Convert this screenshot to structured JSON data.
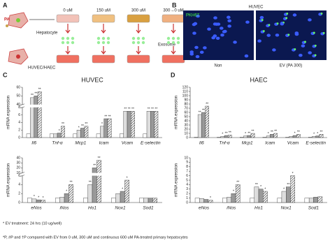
{
  "panels": {
    "a": {
      "letter": "A",
      "pa": "PA",
      "hepatocyte": "Hepatocyte",
      "exosome": "Exosome",
      "target": "HUVEC/HAEC",
      "doses": [
        "0 uM",
        "150 uM",
        "300 uM",
        "300→0 uM"
      ]
    },
    "b": {
      "letter": "B",
      "cell": "HUVEC",
      "stain": "PKH67",
      "left": "Non",
      "right": "EV (PA 300)"
    },
    "c": {
      "letter": "C"
    },
    "d": {
      "letter": "D"
    }
  },
  "footnotes": [
    "* EV treatment: 24 hrs (10 ug/well)",
    "*P, #P and †P compared with EV from 0 uM, 300 uM and continuous 600 uM PA-treated primary hepatocytes"
  ],
  "chart_data": [
    {
      "type": "bar",
      "title": "HUVEC",
      "y_label": "mRNA expression",
      "categories": [
        "Il6",
        "Tnf-α",
        "Mcp1",
        "Icam",
        "Vcam",
        "E-selectin"
      ],
      "ylim": [
        0,
        60
      ],
      "ybreak": [
        8,
        40
      ],
      "yticks": [
        0,
        2,
        4,
        6,
        8,
        40,
        50,
        60
      ],
      "series": [
        {
          "color": "#ffffff",
          "values": [
            1,
            1,
            1,
            1,
            1,
            1
          ]
        },
        {
          "color": "#dddddd",
          "values": [
            48,
            1,
            2,
            3,
            7,
            7
          ],
          "stars": [
            "**",
            null,
            "*",
            "*",
            "**",
            "**"
          ]
        },
        {
          "color": "#999999",
          "values": [
            50,
            1.2,
            2.5,
            5,
            7,
            7
          ],
          "stars": [
            "**",
            "*",
            "**",
            "**",
            "**",
            "**"
          ]
        },
        {
          "color": "#333333",
          "pattern": "hatch",
          "values": [
            55,
            3,
            3,
            5,
            7,
            7
          ],
          "stars": [
            "**",
            "**",
            "**",
            "**",
            "**",
            "**"
          ]
        }
      ]
    },
    {
      "type": "bar",
      "y_label": "mRNA expression",
      "categories": [
        "eNos",
        "iNos",
        "Ho1",
        "Nox1",
        "Sod1"
      ],
      "ylim": [
        0,
        40
      ],
      "ybreak": [
        6,
        10
      ],
      "yticks": [
        0,
        2,
        4,
        6,
        10,
        20,
        30,
        40
      ],
      "series": [
        {
          "color": "#ffffff",
          "values": [
            1,
            1,
            1,
            1,
            1
          ]
        },
        {
          "color": "#dddddd",
          "values": [
            0.8,
            1.2,
            4,
            2,
            1
          ],
          "stars": [
            "*",
            null,
            "**",
            null,
            null
          ]
        },
        {
          "color": "#999999",
          "values": [
            0.6,
            2,
            20,
            2.5,
            1
          ],
          "stars": [
            "*",
            "*",
            "**",
            "*",
            null
          ]
        },
        {
          "color": "#333333",
          "pattern": "hatch",
          "values": [
            0.5,
            4,
            35,
            5,
            1
          ],
          "stars": [
            "*",
            "**",
            "**",
            "*",
            null
          ]
        }
      ]
    },
    {
      "type": "bar",
      "title": "HAEC",
      "y_label": "mRNA expression",
      "categories": [
        "Il6",
        "Tnf-α",
        "Mcp1",
        "Icam",
        "Vcam",
        "E-selectin"
      ],
      "ylim": [
        0,
        120
      ],
      "yticks": [
        0,
        10,
        20,
        30,
        40,
        50,
        60,
        70,
        80,
        90,
        100,
        110,
        120
      ],
      "series": [
        {
          "color": "#ffffff",
          "values": [
            1,
            1,
            1,
            1,
            1,
            1
          ]
        },
        {
          "color": "#dddddd",
          "values": [
            55,
            3,
            4,
            4,
            3,
            3
          ],
          "stars": [
            "**",
            "*",
            "*",
            "*",
            null,
            "*"
          ]
        },
        {
          "color": "#999999",
          "values": [
            60,
            5,
            5,
            8,
            5,
            4
          ],
          "stars": [
            "**",
            "**",
            "**",
            "**",
            "*",
            "*"
          ]
        },
        {
          "color": "#333333",
          "pattern": "hatch",
          "values": [
            75,
            6,
            10,
            10,
            8,
            8
          ],
          "stars": [
            "**",
            "**",
            "**",
            "**",
            "**",
            "**"
          ]
        }
      ]
    },
    {
      "type": "bar",
      "y_label": "mRNA expression",
      "categories": [
        "eNos",
        "iNos",
        "Ho1",
        "Nox1",
        "Sod1"
      ],
      "ylim": [
        0,
        10
      ],
      "yticks": [
        0,
        1,
        2,
        3,
        4,
        5,
        6,
        7,
        8,
        9,
        10
      ],
      "series": [
        {
          "color": "#ffffff",
          "values": [
            1,
            1,
            1,
            1,
            1
          ]
        },
        {
          "color": "#dddddd",
          "values": [
            0.9,
            1.2,
            3.5,
            2.5,
            1
          ],
          "stars": [
            null,
            null,
            "**",
            "*",
            null
          ]
        },
        {
          "color": "#999999",
          "values": [
            0.7,
            2,
            3,
            3.5,
            1.2
          ],
          "stars": [
            null,
            "*",
            "*",
            "**",
            null
          ]
        },
        {
          "color": "#333333",
          "pattern": "hatch",
          "values": [
            0.5,
            4,
            2.5,
            6,
            1.3
          ],
          "stars": [
            "*",
            "**",
            "*",
            "*",
            null
          ]
        }
      ]
    }
  ]
}
